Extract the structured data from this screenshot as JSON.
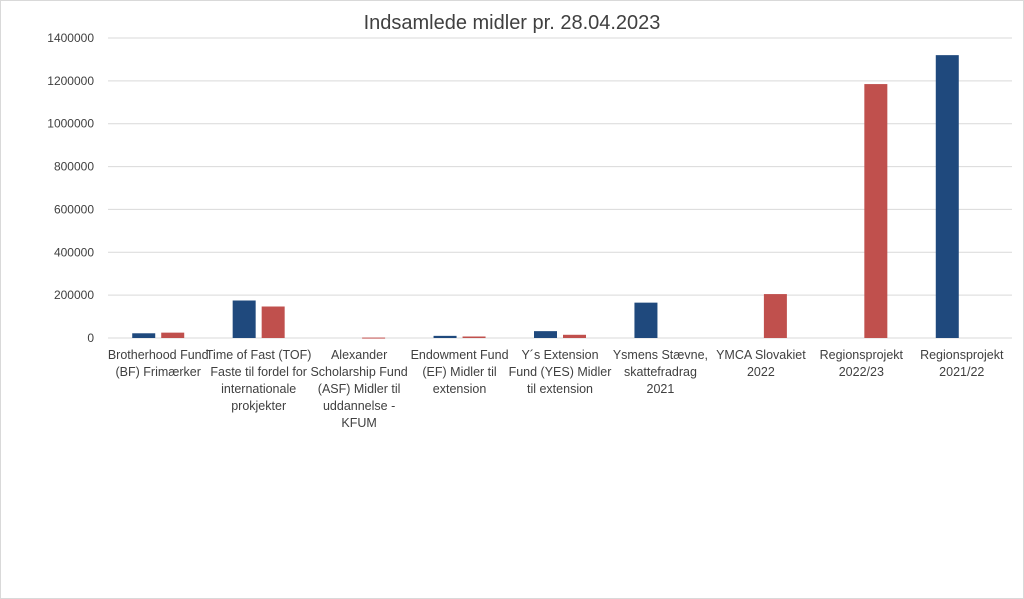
{
  "chart_data": {
    "type": "bar",
    "title": "Indsamlede midler pr. 28.04.2023",
    "categories": [
      "Brotherhood Fund (BF) Frimærker",
      "Time of Fast (TOF) Faste til fordel for internationale prokjekter",
      "Alexander Scholarship Fund (ASF) Midler til uddannelse - KFUM",
      "Endowment Fund (EF) Midler til extension",
      "Y´s Extension Fund (YES) Midler til extension",
      "Ysmens Stævne, skattefradrag 2021",
      "YMCA Slovakiet 2022",
      "Regionsprojekt 2022/23",
      "Regionsprojekt 2021/22"
    ],
    "category_lines": [
      [
        "Brotherhood Fund",
        "(BF) Frimærker"
      ],
      [
        "Time of Fast (TOF)",
        "Faste til fordel for",
        "internationale",
        "prokjekter"
      ],
      [
        "Alexander",
        "Scholarship Fund",
        "(ASF) Midler til",
        "uddannelse -",
        "KFUM"
      ],
      [
        "Endowment Fund",
        "(EF) Midler til",
        "extension"
      ],
      [
        "Y´s Extension",
        "Fund (YES) Midler",
        "til extension"
      ],
      [
        "Ysmens Stævne,",
        "skattefradrag",
        "2021"
      ],
      [
        "YMCA Slovakiet",
        "2022"
      ],
      [
        "Regionsprojekt",
        "2022/23"
      ],
      [
        "Regionsprojekt",
        "2021/22"
      ]
    ],
    "series": [
      {
        "values": [
          22000,
          175000,
          0,
          10000,
          32000,
          165000,
          0,
          0,
          1320000
        ],
        "color": "#1f497d"
      },
      {
        "values": [
          25000,
          147000,
          2000,
          7000,
          15000,
          0,
          205000,
          1185000,
          0
        ],
        "color": "#c0504d"
      }
    ],
    "ylim": [
      0,
      1400000
    ],
    "yticks": [
      "0",
      "200000",
      "400000",
      "600000",
      "800000",
      "1000000",
      "1200000",
      "1400000"
    ],
    "grid": true,
    "xlabel": "",
    "ylabel": ""
  },
  "colors": {
    "series1": "#1f497d",
    "series2": "#c0504d",
    "grid": "#d9d9d9"
  }
}
